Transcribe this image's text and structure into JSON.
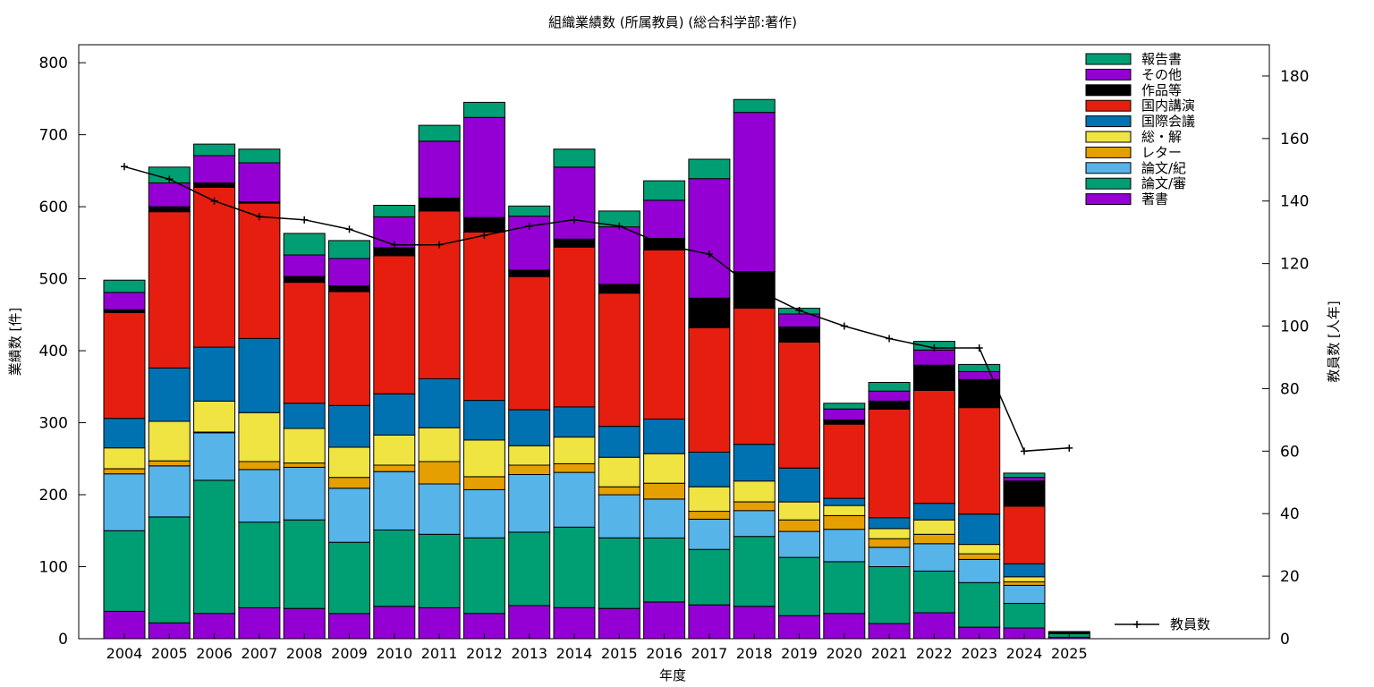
{
  "chart_data": {
    "type": "bar",
    "stacked": true,
    "title": "組織業績数 (所属教員) (総合科学部:著作)",
    "xlabel": "年度",
    "ylabel": "業績数 [件]",
    "y2label": "教員数 [人年]",
    "ylim": [
      0,
      825
    ],
    "y2lim": [
      0,
      190
    ],
    "yticks": [
      0,
      100,
      200,
      300,
      400,
      500,
      600,
      700,
      800
    ],
    "y2ticks": [
      0,
      20,
      40,
      60,
      80,
      100,
      120,
      140,
      160,
      180
    ],
    "grid": false,
    "legend_position": "top-right",
    "categories": [
      "2004",
      "2005",
      "2006",
      "2007",
      "2008",
      "2009",
      "2010",
      "2011",
      "2012",
      "2013",
      "2014",
      "2015",
      "2016",
      "2017",
      "2018",
      "2019",
      "2020",
      "2021",
      "2022",
      "2023",
      "2024",
      "2025"
    ],
    "series": [
      {
        "name": "著書",
        "color": "#9400d3",
        "values": [
          38,
          22,
          35,
          43,
          42,
          35,
          45,
          43,
          35,
          46,
          43,
          42,
          51,
          47,
          45,
          32,
          35,
          21,
          36,
          16,
          15,
          2
        ]
      },
      {
        "name": "論文/審",
        "color": "#009e73",
        "values": [
          112,
          147,
          185,
          119,
          123,
          99,
          106,
          102,
          105,
          102,
          112,
          98,
          89,
          77,
          97,
          81,
          72,
          79,
          58,
          62,
          34,
          5
        ]
      },
      {
        "name": "論文/紀",
        "color": "#56b4e9",
        "values": [
          79,
          71,
          66,
          73,
          73,
          75,
          81,
          70,
          67,
          80,
          76,
          60,
          54,
          42,
          36,
          36,
          45,
          27,
          38,
          32,
          25,
          0
        ]
      },
      {
        "name": "レター",
        "color": "#e69f00",
        "values": [
          7,
          7,
          1,
          11,
          6,
          15,
          9,
          31,
          18,
          13,
          12,
          11,
          22,
          11,
          12,
          16,
          19,
          12,
          13,
          8,
          5,
          0
        ]
      },
      {
        "name": "総・解",
        "color": "#f0e442",
        "values": [
          29,
          55,
          43,
          68,
          48,
          42,
          42,
          47,
          51,
          27,
          37,
          41,
          41,
          34,
          29,
          25,
          14,
          14,
          20,
          13,
          7,
          0
        ]
      },
      {
        "name": "国際会議",
        "color": "#0072b2",
        "values": [
          41,
          74,
          75,
          103,
          35,
          58,
          57,
          68,
          55,
          50,
          42,
          43,
          48,
          48,
          51,
          47,
          10,
          15,
          23,
          42,
          18,
          0
        ]
      },
      {
        "name": "国内講演",
        "color": "#e51e10",
        "values": [
          147,
          217,
          222,
          188,
          168,
          158,
          192,
          233,
          234,
          185,
          222,
          185,
          235,
          173,
          189,
          175,
          103,
          151,
          157,
          148,
          80,
          0
        ]
      },
      {
        "name": "作品等",
        "color": "#000000",
        "values": [
          4,
          7,
          6,
          2,
          8,
          8,
          11,
          18,
          20,
          9,
          11,
          12,
          16,
          41,
          51,
          21,
          6,
          11,
          35,
          39,
          35,
          3
        ]
      },
      {
        "name": "その他",
        "color": "#9400d3",
        "values": [
          24,
          33,
          38,
          54,
          30,
          38,
          43,
          79,
          139,
          75,
          100,
          80,
          53,
          166,
          221,
          18,
          15,
          14,
          21,
          11,
          5,
          0
        ]
      },
      {
        "name": "報告書",
        "color": "#009e73",
        "values": [
          17,
          22,
          16,
          19,
          30,
          25,
          16,
          22,
          21,
          14,
          25,
          22,
          27,
          27,
          18,
          8,
          8,
          12,
          12,
          10,
          6,
          0
        ]
      }
    ],
    "line_series": {
      "name": "教員数",
      "axis": "y2",
      "color": "#000000",
      "values": [
        151,
        147,
        140,
        135,
        134,
        131,
        126,
        126,
        129,
        132,
        134,
        132,
        126,
        123,
        112,
        105,
        100,
        96,
        93,
        93,
        60,
        61
      ]
    }
  }
}
